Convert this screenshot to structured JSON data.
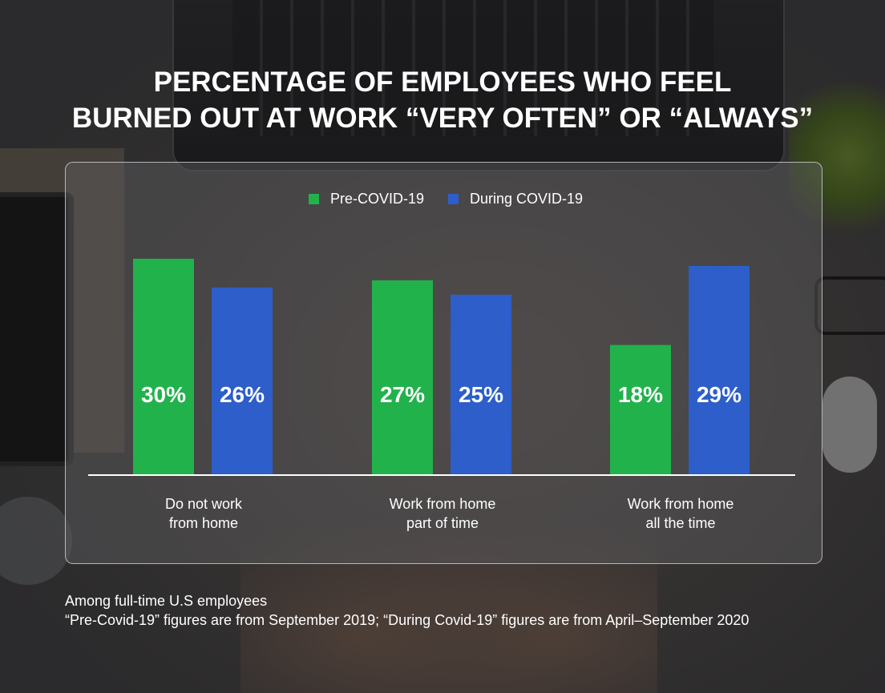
{
  "title_lines": [
    "PERCENTAGE OF EMPLOYEES WHO FEEL",
    "BURNED OUT AT WORK “VERY OFTEN” OR “ALWAYS”"
  ],
  "colors": {
    "pre": "#22b24c",
    "during": "#2d5ec9"
  },
  "chart_data": {
    "type": "bar",
    "title": "PERCENTAGE OF EMPLOYEES WHO FEEL BURNED OUT AT WORK “VERY OFTEN” OR “ALWAYS”",
    "categories": [
      "Do not work\nfrom home",
      "Work from home\npart of time",
      "Work from home\nall the time"
    ],
    "series": [
      {
        "name": "Pre-COVID-19",
        "values": [
          30,
          27,
          18
        ],
        "labels": [
          "30%",
          "27%",
          "18%"
        ]
      },
      {
        "name": "During COVID-19",
        "values": [
          26,
          25,
          29
        ],
        "labels": [
          "26%",
          "25%",
          "29%"
        ]
      }
    ],
    "ylim": [
      0,
      30
    ],
    "legend_position": "top-center",
    "grid": false,
    "xlabel": "",
    "ylabel": ""
  },
  "notes": [
    "Among full-time U.S employees",
    "“Pre-Covid-19” figures are from September 2019; “During Covid-19” figures are from April–September 2020"
  ]
}
